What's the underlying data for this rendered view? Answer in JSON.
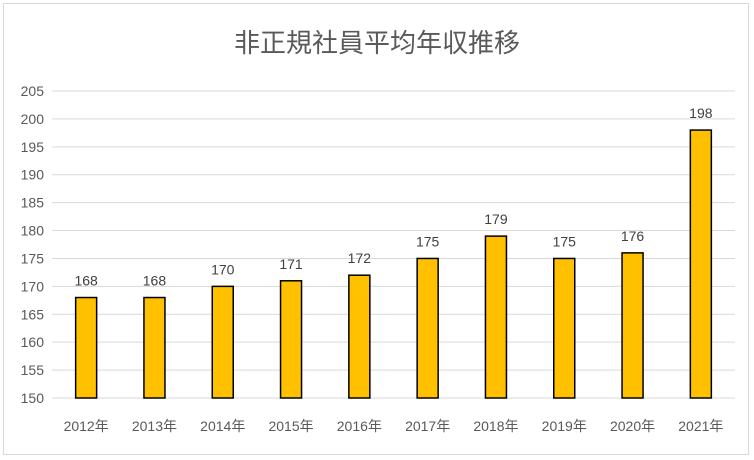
{
  "chart_data": {
    "type": "bar",
    "title": "非正規社員平均年収推移",
    "categories": [
      "2012年",
      "2013年",
      "2014年",
      "2015年",
      "2016年",
      "2017年",
      "2018年",
      "2019年",
      "2020年",
      "2021年"
    ],
    "values": [
      168,
      168,
      170,
      171,
      172,
      175,
      179,
      175,
      176,
      198
    ],
    "ylim": [
      150,
      205
    ],
    "yticks": [
      150,
      155,
      160,
      165,
      170,
      175,
      180,
      185,
      190,
      195,
      200,
      205
    ],
    "grid": true,
    "bar_color": "#FFC000",
    "bar_edge_color": "#000000"
  }
}
